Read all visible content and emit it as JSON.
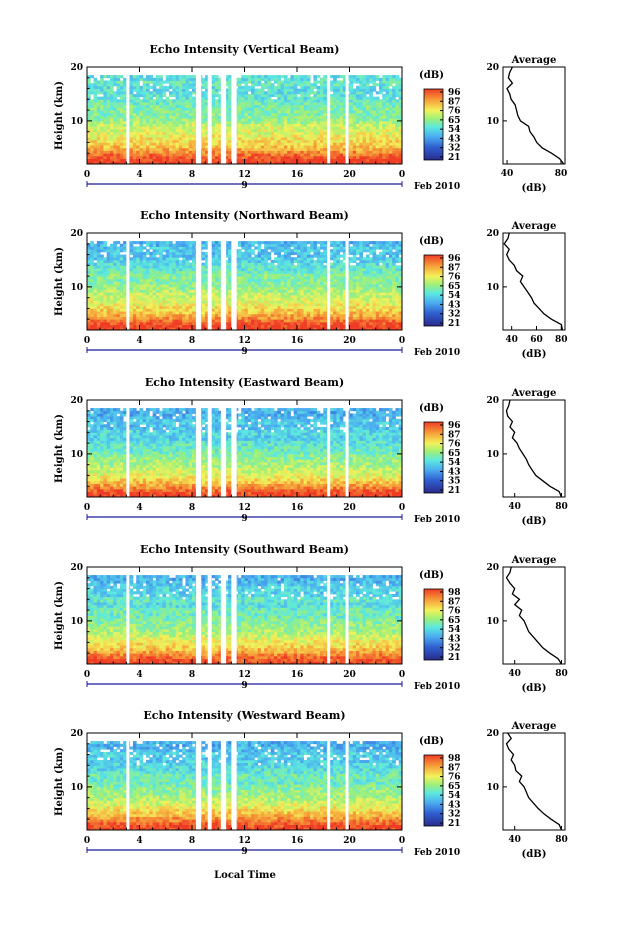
{
  "figure": {
    "xlabel": "Local Time",
    "date_label": "Feb 2010",
    "day_label": "9"
  },
  "chart_data": [
    {
      "type": "heatmap",
      "title": "Echo Intensity (Vertical Beam)",
      "ylabel": "Height (km)",
      "xlabel": "Local Time",
      "xticks": [
        "0",
        "4",
        "8",
        "12",
        "16",
        "20",
        "0"
      ],
      "yticks": [
        "10",
        "20"
      ],
      "xlim": [
        0,
        24
      ],
      "ylim": [
        2,
        20
      ],
      "colorbar": {
        "unit": "(dB)",
        "ticks": [
          "96",
          "87",
          "76",
          "65",
          "54",
          "43",
          "32",
          "21"
        ],
        "range": [
          21,
          96
        ]
      },
      "gaps_hours": [
        [
          3.0,
          3.2
        ],
        [
          8.3,
          8.7
        ],
        [
          9.2,
          9.5
        ],
        [
          10.2,
          10.6
        ],
        [
          11.0,
          11.4
        ],
        [
          18.3,
          18.5
        ],
        [
          19.7,
          19.9
        ]
      ],
      "average_profile": {
        "title": "Average",
        "xlabel": "(dB)",
        "xticks": [
          "40",
          "80"
        ],
        "yticks": [
          "10",
          "20"
        ],
        "xlim": [
          37,
          83
        ],
        "height_km": [
          2,
          3,
          4,
          5,
          6,
          7,
          8,
          9,
          10,
          11,
          12,
          13,
          14,
          15,
          16,
          17,
          18,
          19,
          20
        ],
        "db": [
          82,
          79,
          73,
          66,
          62,
          60,
          57,
          56,
          50,
          48,
          47,
          46,
          43,
          42,
          40,
          44,
          41,
          42,
          44
        ]
      }
    },
    {
      "type": "heatmap",
      "title": "Echo Intensity (Northward Beam)",
      "ylabel": "Height (km)",
      "xlabel": "Local Time",
      "xticks": [
        "0",
        "4",
        "8",
        "12",
        "16",
        "20",
        "0"
      ],
      "yticks": [
        "10",
        "20"
      ],
      "xlim": [
        0,
        24
      ],
      "ylim": [
        2,
        20
      ],
      "colorbar": {
        "unit": "(dB)",
        "ticks": [
          "96",
          "87",
          "76",
          "65",
          "54",
          "43",
          "32",
          "21"
        ],
        "range": [
          21,
          96
        ]
      },
      "gaps_hours": [
        [
          3.0,
          3.2
        ],
        [
          8.3,
          8.7
        ],
        [
          9.2,
          9.5
        ],
        [
          10.2,
          10.6
        ],
        [
          11.0,
          11.4
        ],
        [
          18.3,
          18.5
        ],
        [
          19.7,
          19.9
        ]
      ],
      "average_profile": {
        "title": "Average",
        "xlabel": "(dB)",
        "xticks": [
          "40",
          "60",
          "80"
        ],
        "yticks": [
          "10",
          "20"
        ],
        "xlim": [
          33,
          83
        ],
        "height_km": [
          2,
          3,
          4,
          5,
          6,
          7,
          8,
          9,
          10,
          11,
          12,
          13,
          14,
          15,
          16,
          17,
          18,
          19,
          20
        ],
        "db": [
          81,
          80,
          72,
          66,
          62,
          58,
          56,
          53,
          50,
          47,
          49,
          44,
          42,
          38,
          36,
          38,
          34,
          37,
          38
        ]
      }
    },
    {
      "type": "heatmap",
      "title": "Echo Intensity (Eastward Beam)",
      "ylabel": "Height (km)",
      "xlabel": "Local Time",
      "xticks": [
        "0",
        "4",
        "8",
        "12",
        "16",
        "20",
        "0"
      ],
      "yticks": [
        "10",
        "20"
      ],
      "xlim": [
        0,
        24
      ],
      "ylim": [
        2,
        20
      ],
      "colorbar": {
        "unit": "(dB)",
        "ticks": [
          "96",
          "87",
          "76",
          "65",
          "54",
          "43",
          "35",
          "21"
        ],
        "range": [
          21,
          96
        ]
      },
      "gaps_hours": [
        [
          3.0,
          3.2
        ],
        [
          8.3,
          8.7
        ],
        [
          9.2,
          9.5
        ],
        [
          10.2,
          10.6
        ],
        [
          11.0,
          11.4
        ],
        [
          18.3,
          18.5
        ],
        [
          19.7,
          19.9
        ]
      ],
      "average_profile": {
        "title": "Average",
        "xlabel": "(dB)",
        "xticks": [
          "40",
          "80"
        ],
        "yticks": [
          "10",
          "20"
        ],
        "xlim": [
          30,
          83
        ],
        "height_km": [
          2,
          3,
          4,
          5,
          6,
          7,
          8,
          9,
          10,
          11,
          12,
          13,
          14,
          15,
          16,
          17,
          18,
          19,
          20
        ],
        "db": [
          80,
          78,
          70,
          64,
          58,
          55,
          52,
          50,
          47,
          44,
          42,
          38,
          40,
          36,
          38,
          34,
          33,
          35,
          36
        ]
      }
    },
    {
      "type": "heatmap",
      "title": "Echo Intensity (Southward Beam)",
      "ylabel": "Height (km)",
      "xlabel": "Local Time",
      "xticks": [
        "0",
        "4",
        "8",
        "12",
        "16",
        "20",
        "0"
      ],
      "yticks": [
        "10",
        "20"
      ],
      "xlim": [
        0,
        24
      ],
      "ylim": [
        2,
        20
      ],
      "colorbar": {
        "unit": "(dB)",
        "ticks": [
          "98",
          "87",
          "76",
          "65",
          "54",
          "43",
          "32",
          "21"
        ],
        "range": [
          21,
          98
        ]
      },
      "gaps_hours": [
        [
          3.0,
          3.2
        ],
        [
          8.3,
          8.7
        ],
        [
          9.2,
          9.5
        ],
        [
          10.2,
          10.6
        ],
        [
          11.0,
          11.4
        ],
        [
          18.3,
          18.5
        ],
        [
          19.7,
          19.9
        ]
      ],
      "average_profile": {
        "title": "Average",
        "xlabel": "(dB)",
        "xticks": [
          "40",
          "80"
        ],
        "yticks": [
          "10",
          "20"
        ],
        "xlim": [
          30,
          83
        ],
        "height_km": [
          2,
          3,
          4,
          5,
          6,
          7,
          8,
          9,
          10,
          11,
          12,
          13,
          14,
          15,
          16,
          17,
          18,
          19,
          20
        ],
        "db": [
          80,
          77,
          70,
          64,
          60,
          56,
          52,
          50,
          48,
          44,
          46,
          40,
          44,
          38,
          40,
          36,
          33,
          36,
          37
        ]
      }
    },
    {
      "type": "heatmap",
      "title": "Echo Intensity (Westward Beam)",
      "ylabel": "Height (km)",
      "xlabel": "Local Time",
      "xticks": [
        "0",
        "4",
        "8",
        "12",
        "16",
        "20",
        "0"
      ],
      "yticks": [
        "10",
        "20"
      ],
      "xlim": [
        0,
        24
      ],
      "ylim": [
        2,
        20
      ],
      "colorbar": {
        "unit": "(dB)",
        "ticks": [
          "98",
          "87",
          "76",
          "65",
          "54",
          "43",
          "32",
          "21"
        ],
        "range": [
          21,
          98
        ]
      },
      "gaps_hours": [
        [
          3.0,
          3.2
        ],
        [
          8.3,
          8.7
        ],
        [
          9.2,
          9.5
        ],
        [
          10.2,
          10.6
        ],
        [
          11.0,
          11.4
        ],
        [
          18.3,
          18.5
        ],
        [
          19.7,
          19.9
        ]
      ],
      "average_profile": {
        "title": "Average",
        "xlabel": "(dB)",
        "xticks": [
          "40",
          "80"
        ],
        "yticks": [
          "10",
          "20"
        ],
        "xlim": [
          30,
          83
        ],
        "height_km": [
          2,
          3,
          4,
          5,
          6,
          7,
          8,
          9,
          10,
          11,
          12,
          13,
          14,
          15,
          16,
          17,
          18,
          19,
          20
        ],
        "db": [
          80,
          78,
          71,
          65,
          60,
          56,
          52,
          50,
          48,
          44,
          46,
          41,
          40,
          37,
          39,
          35,
          33,
          37,
          34
        ]
      }
    }
  ]
}
